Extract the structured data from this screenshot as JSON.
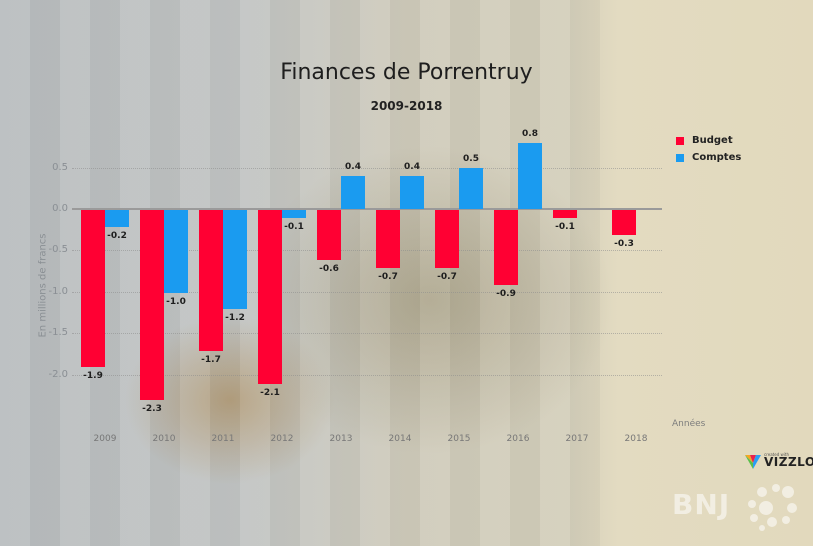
{
  "chart_data": {
    "type": "bar",
    "title": "Finances de Porrentruy",
    "subtitle": "2009-2018",
    "xlabel": "Années",
    "ylabel": "En millions de francs",
    "categories": [
      "2009",
      "2010",
      "2011",
      "2012",
      "2013",
      "2014",
      "2015",
      "2016",
      "2017",
      "2018"
    ],
    "series": [
      {
        "name": "Budget",
        "color": "#ff0033",
        "values": [
          -1.9,
          -2.3,
          -1.7,
          -2.1,
          -0.6,
          -0.7,
          -0.7,
          -0.9,
          -0.1,
          -0.3
        ]
      },
      {
        "name": "Comptes",
        "color": "#1a9bf0",
        "values": [
          -0.2,
          -1.0,
          -1.2,
          -0.1,
          0.4,
          0.4,
          0.5,
          0.8,
          null,
          null
        ]
      }
    ],
    "value_labels": {
      "Budget": [
        "-1.9",
        "-2.3",
        "-1.7",
        "-2.1",
        "-0.6",
        "-0.7",
        "-0.7",
        "-0.9",
        "-0.1",
        "-0.3"
      ],
      "Comptes": [
        "-0.2",
        "-1.0",
        "-1.2",
        "-0.1",
        "0.4",
        "0.4",
        "0.5",
        "0.8",
        "",
        ""
      ]
    },
    "yticks": [
      "0.5",
      "0.0",
      "-0.5",
      "-1.0",
      "-1.5",
      "-2.0"
    ],
    "ylim": [
      -2.3,
      0.8
    ],
    "grid": true,
    "legend_position": "right"
  },
  "header": {
    "title": "Finances de Porrentruy",
    "subtitle": "2009-2018"
  },
  "legend": [
    {
      "label": "Budget",
      "color": "#ff0033"
    },
    {
      "label": "Comptes",
      "color": "#1a9bf0"
    }
  ],
  "axes": {
    "ylabel": "En millions de francs",
    "xlabel": "Années"
  },
  "branding": {
    "vizzlo_small": "created with",
    "vizzlo": "VIZZLO",
    "bnj": "BNJ"
  }
}
